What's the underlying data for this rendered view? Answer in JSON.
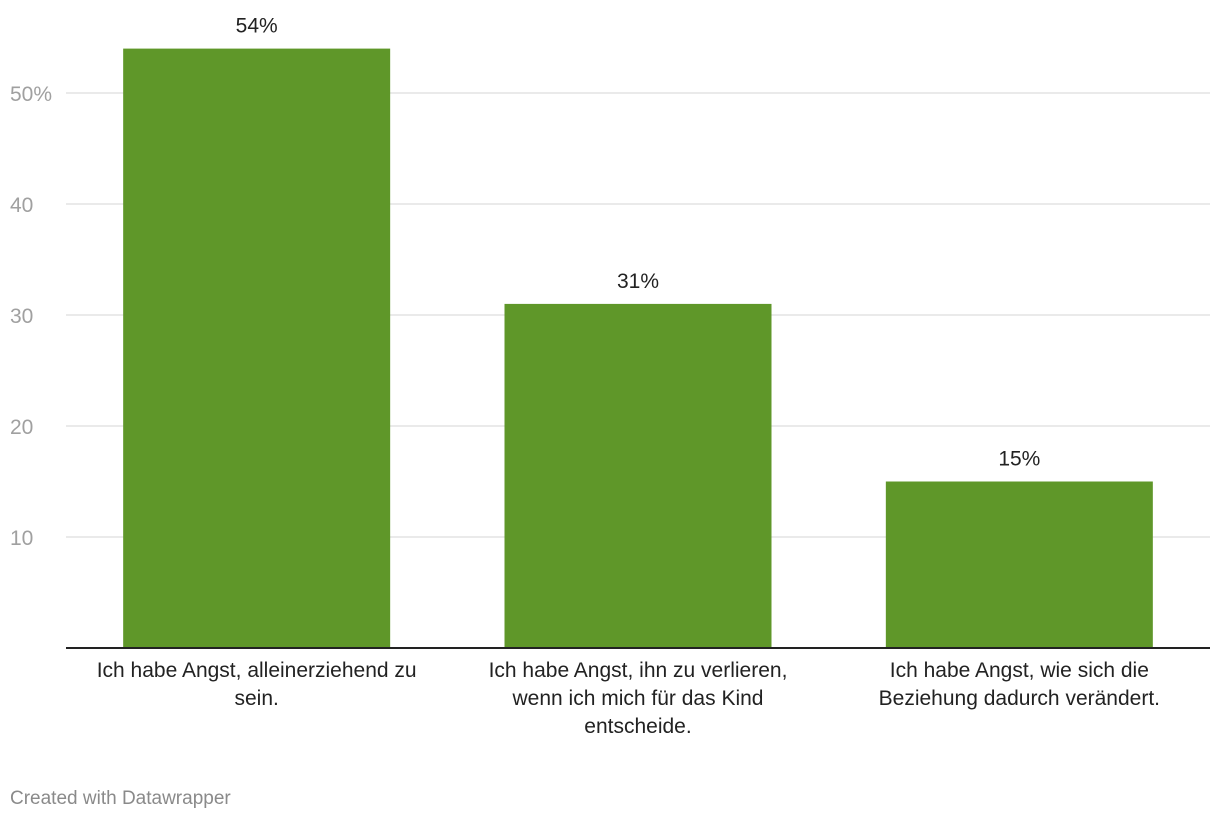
{
  "chart_data": {
    "type": "bar",
    "categories": [
      "Ich habe Angst, alleinerziehend zu sein.",
      "Ich habe Angst, ihn zu verlieren, wenn ich mich für das Kind entscheide.",
      "Ich habe Angst, wie sich die Beziehung dadurch verändert."
    ],
    "values": [
      54,
      31,
      15
    ],
    "value_labels": [
      "54%",
      "31%",
      "15%"
    ],
    "title": "",
    "xlabel": "",
    "ylabel": "",
    "ylim": [
      0,
      54
    ],
    "y_ticks": [
      10,
      20,
      30,
      40,
      50
    ],
    "y_tick_labels": [
      "10",
      "20",
      "30",
      "40",
      "50%"
    ],
    "grid": true,
    "bar_color": "#5f9729"
  },
  "footer": {
    "credit": "Created with Datawrapper"
  }
}
